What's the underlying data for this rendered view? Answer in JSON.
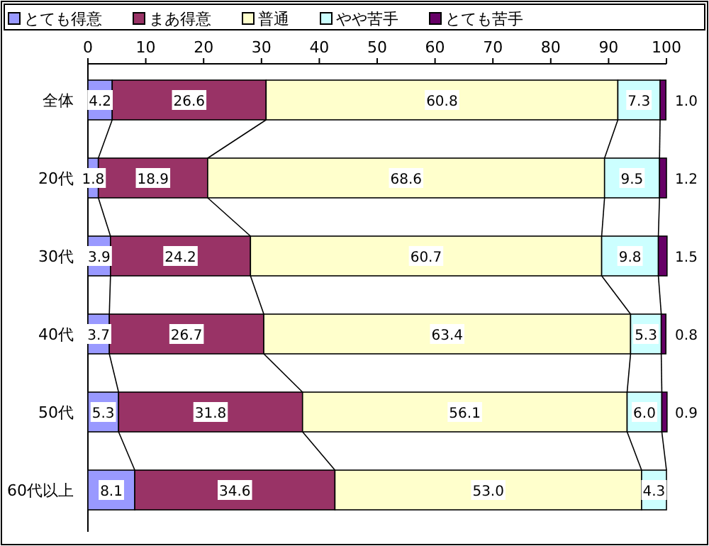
{
  "chart_data": {
    "type": "bar",
    "orientation": "horizontal",
    "stacked": true,
    "legend": "top",
    "grid": false,
    "categories": [
      "全体",
      "20代",
      "30代",
      "40代",
      "50代",
      "60代以上"
    ],
    "xlim": [
      0,
      100
    ],
    "xticks": [
      0,
      10,
      20,
      30,
      40,
      50,
      60,
      70,
      80,
      90,
      100
    ],
    "series": [
      {
        "name": "とても得意",
        "color": "#9999ff",
        "values": [
          4.2,
          1.8,
          3.9,
          3.7,
          5.3,
          8.1
        ],
        "value_labels": [
          "4.2",
          "1.8",
          "3.9",
          "3.7",
          "5.3",
          "8.1"
        ]
      },
      {
        "name": "まあ得意",
        "color": "#993366",
        "values": [
          26.6,
          18.9,
          24.2,
          26.7,
          31.8,
          34.6
        ],
        "value_labels": [
          "26.6",
          "18.9",
          "24.2",
          "26.7",
          "31.8",
          "34.6"
        ]
      },
      {
        "name": "普通",
        "color": "#ffffcc",
        "values": [
          60.8,
          68.6,
          60.7,
          63.4,
          56.1,
          53.0
        ],
        "value_labels": [
          "60.8",
          "68.6",
          "60.7",
          "63.4",
          "56.1",
          "53.0"
        ]
      },
      {
        "name": "やや苦手",
        "color": "#ccffff",
        "values": [
          7.3,
          9.5,
          9.8,
          5.3,
          6.0,
          4.3
        ],
        "value_labels": [
          "7.3",
          "9.5",
          "9.8",
          "5.3",
          "6.0",
          "4.3"
        ]
      },
      {
        "name": "とても苦手",
        "color": "#660066",
        "values": [
          1.0,
          1.2,
          1.5,
          0.8,
          0.9,
          null
        ],
        "value_labels": [
          "1.0",
          "1.2",
          "1.5",
          "0.8",
          "0.9",
          null
        ]
      }
    ]
  }
}
